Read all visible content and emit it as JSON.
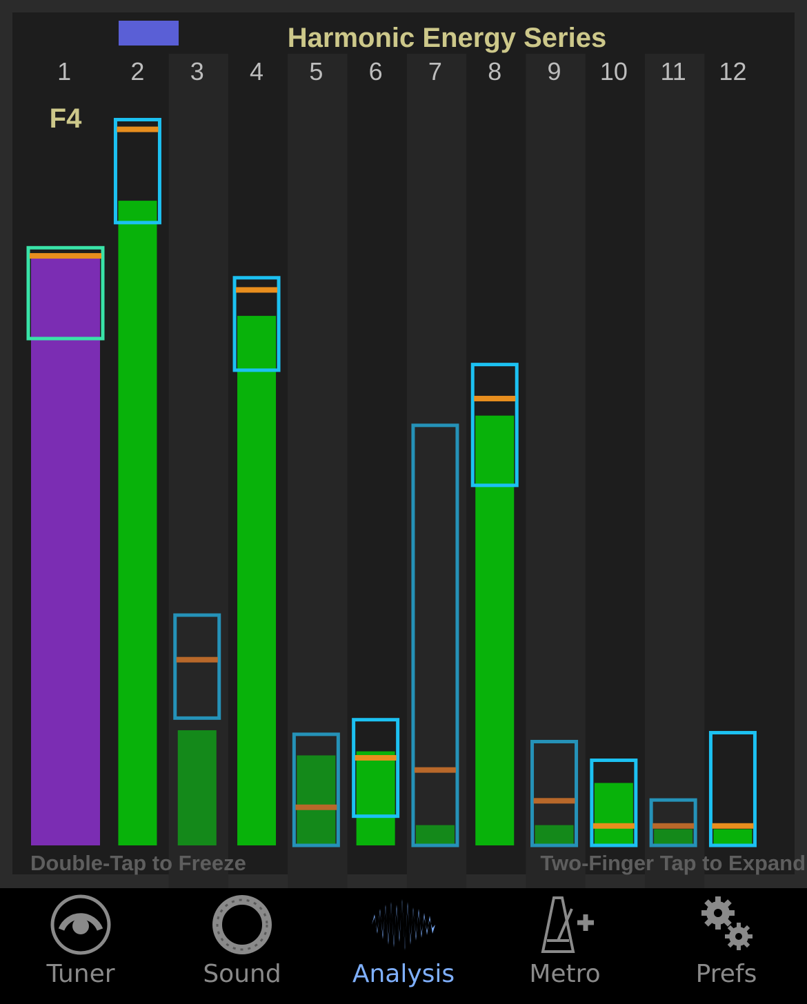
{
  "chart_data": {
    "type": "bar",
    "title": "Harmonic Energy Series",
    "note": "F4",
    "categories": [
      "1",
      "2",
      "3",
      "4",
      "5",
      "6",
      "7",
      "8",
      "9",
      "10",
      "11",
      "12"
    ],
    "series": [
      {
        "values": [
          0.725,
          0.795,
          0.142,
          0.653,
          0.111,
          0.116,
          0.025,
          0.53,
          0.025,
          0.077,
          0.02,
          0.02
        ]
      }
    ],
    "target_range": [
      [
        0.625,
        0.737
      ],
      [
        0.768,
        0.895
      ],
      [
        0.157,
        0.284
      ],
      [
        0.586,
        0.7
      ],
      [
        0.0,
        0.137
      ],
      [
        0.036,
        0.155
      ],
      [
        0.0,
        0.518
      ],
      [
        0.444,
        0.593
      ],
      [
        0.0,
        0.128
      ],
      [
        0.0,
        0.105
      ],
      [
        0.0,
        0.056
      ],
      [
        0.0,
        0.139
      ]
    ],
    "reference_level": [
      0.727,
      0.883,
      0.229,
      0.685,
      0.047,
      0.108,
      0.093,
      0.551,
      0.055,
      0.024,
      0.024,
      0.024
    ],
    "ylim": [
      0,
      1
    ],
    "colors": {
      "background": "#2b2b2b",
      "plot": "#1d1d1d",
      "column_alt": "#262626",
      "fundamental_bar": "#7b2db3",
      "bar_in_range": "#08b20a",
      "bar_out_of_range": "#14891a",
      "fundamental_box": "#39e3a8",
      "range_box": "#1cc1f2",
      "range_box_dim": "#2592b8",
      "reference_line": "#e88e1e",
      "reference_line_dim": "#b8682a",
      "title": "#cdc88a",
      "tick_labels": "#bdbdbd",
      "level_marker": "#5a5fd6"
    }
  },
  "hints": {
    "left": "Double-Tap to Freeze",
    "right": "Two-Finger Tap to Expand"
  },
  "tabs": [
    {
      "label": "Tuner",
      "icon": "tuner-icon"
    },
    {
      "label": "Sound",
      "icon": "sound-wheel-icon"
    },
    {
      "label": "Analysis",
      "icon": "waveform-icon",
      "active": true
    },
    {
      "label": "Metro",
      "icon": "metronome-plus-icon"
    },
    {
      "label": "Prefs",
      "icon": "gears-icon"
    }
  ]
}
